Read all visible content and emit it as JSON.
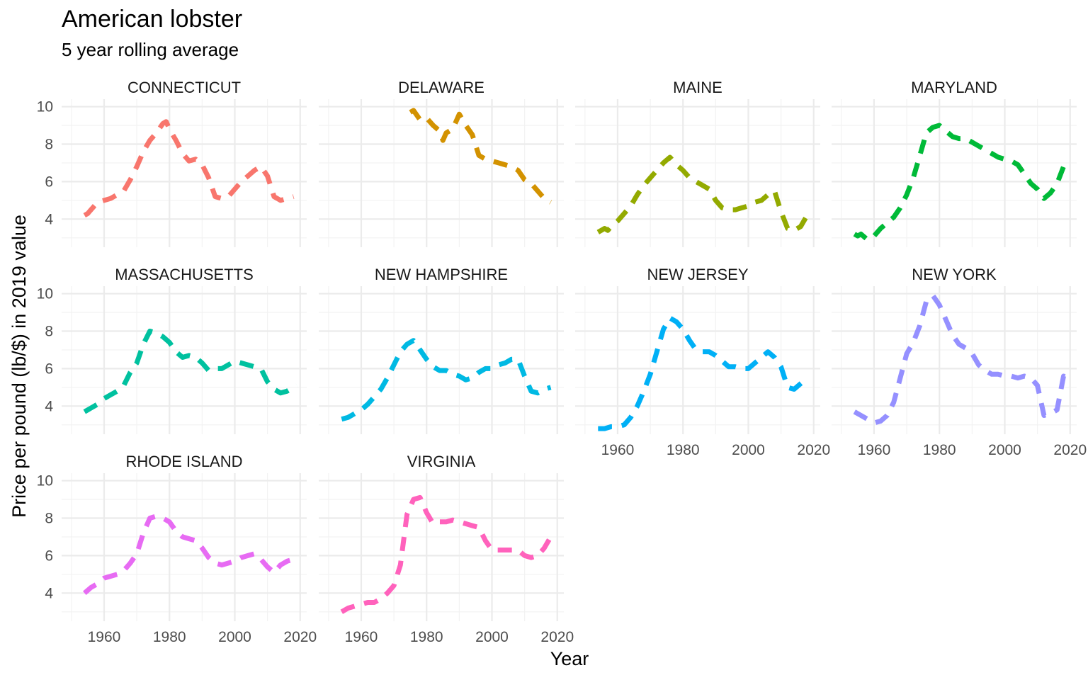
{
  "chart_data": {
    "type": "line",
    "title": "American lobster",
    "subtitle": "5 year rolling average",
    "xlabel": "Year",
    "ylabel": "Price per pound (lb/$) in 2019 value",
    "xlim": [
      1947,
      2022
    ],
    "ylim": [
      2.5,
      10.4
    ],
    "x_ticks": [
      1960,
      1980,
      2000,
      2020
    ],
    "y_ticks": [
      4,
      6,
      8,
      10
    ],
    "grid": true,
    "legend": "none",
    "line_style": "dashed",
    "panels": [
      {
        "name": "CONNECTICUT",
        "color": "#F8766D",
        "x": [
          1954,
          1955,
          1956,
          1957,
          1958,
          1960,
          1962,
          1964,
          1966,
          1968,
          1970,
          1972,
          1974,
          1976,
          1978,
          1979,
          1980,
          1981,
          1982,
          1984,
          1986,
          1988,
          1990,
          1992,
          1994,
          1996,
          1998,
          2000,
          2002,
          2004,
          2006,
          2008,
          2010,
          2012,
          2014,
          2016,
          2018
        ],
        "y": [
          4.2,
          4.3,
          4.5,
          4.7,
          4.9,
          5.0,
          5.1,
          5.3,
          5.5,
          6.1,
          6.8,
          7.6,
          8.2,
          8.6,
          9.1,
          9.2,
          8.8,
          8.5,
          8.2,
          7.5,
          7.1,
          7.2,
          6.9,
          6.2,
          5.2,
          5.1,
          5.2,
          5.6,
          6.0,
          6.3,
          6.6,
          6.8,
          6.3,
          5.2,
          5.0,
          5.1,
          5.2
        ]
      },
      {
        "name": "DELAWARE",
        "color": "#D39200",
        "x": [
          1975,
          1976,
          1978,
          1980,
          1982,
          1984,
          1985,
          1986,
          1988,
          1990,
          1992,
          1994,
          1996,
          1998,
          2000,
          2002,
          2004,
          2006,
          2008,
          2010,
          2012,
          2014,
          2016,
          2018
        ],
        "y": [
          9.7,
          9.8,
          9.3,
          9.4,
          9.0,
          8.7,
          8.2,
          8.6,
          8.8,
          9.6,
          9.0,
          8.5,
          7.4,
          7.2,
          7.1,
          7.0,
          6.9,
          6.8,
          6.6,
          6.1,
          5.9,
          5.5,
          5.1,
          4.9
        ]
      },
      {
        "name": "MAINE",
        "color": "#93AA00",
        "x": [
          1954,
          1955,
          1956,
          1957,
          1958,
          1960,
          1962,
          1964,
          1966,
          1968,
          1970,
          1972,
          1974,
          1976,
          1978,
          1980,
          1982,
          1984,
          1986,
          1988,
          1990,
          1992,
          1994,
          1996,
          1998,
          2000,
          2002,
          2004,
          2006,
          2008,
          2010,
          2012,
          2014,
          2016,
          2018,
          2019
        ],
        "y": [
          3.3,
          3.4,
          3.5,
          3.4,
          3.6,
          3.9,
          4.3,
          4.7,
          5.3,
          5.8,
          6.2,
          6.6,
          7.0,
          7.3,
          6.9,
          6.6,
          6.2,
          6.0,
          5.8,
          5.6,
          5.0,
          4.6,
          4.5,
          4.5,
          4.6,
          4.7,
          4.9,
          5.0,
          5.3,
          5.5,
          4.4,
          3.5,
          3.4,
          3.6,
          4.2,
          4.3
        ]
      },
      {
        "name": "MARYLAND",
        "color": "#00BA38",
        "x": [
          1954,
          1955,
          1956,
          1958,
          1959,
          1960,
          1962,
          1964,
          1966,
          1968,
          1970,
          1972,
          1974,
          1976,
          1978,
          1980,
          1982,
          1984,
          1986,
          1988,
          1990,
          1992,
          1994,
          1996,
          1998,
          2000,
          2002,
          2004,
          2006,
          2008,
          2010,
          2012,
          2014,
          2016,
          2018,
          2019
        ],
        "y": [
          3.2,
          3.1,
          3.2,
          2.9,
          3.0,
          3.1,
          3.5,
          3.8,
          4.1,
          4.6,
          5.3,
          6.2,
          7.4,
          8.6,
          8.9,
          9.0,
          8.7,
          8.4,
          8.3,
          8.3,
          8.1,
          7.9,
          7.7,
          7.5,
          7.3,
          7.2,
          7.1,
          6.9,
          6.4,
          5.9,
          5.6,
          5.1,
          5.4,
          5.9,
          6.8,
          7.0
        ]
      },
      {
        "name": "MASSACHUSETTS",
        "color": "#00C19F",
        "x": [
          1954,
          1956,
          1958,
          1960,
          1962,
          1964,
          1966,
          1968,
          1970,
          1972,
          1974,
          1976,
          1978,
          1980,
          1982,
          1984,
          1986,
          1988,
          1990,
          1992,
          1994,
          1996,
          1998,
          2000,
          2002,
          2004,
          2006,
          2008,
          2010,
          2012,
          2014,
          2016,
          2018,
          2019
        ],
        "y": [
          3.7,
          3.9,
          4.1,
          4.4,
          4.6,
          4.8,
          5.1,
          5.8,
          6.3,
          7.3,
          8.0,
          7.9,
          7.7,
          7.4,
          6.9,
          6.6,
          6.7,
          6.6,
          6.3,
          5.9,
          6.0,
          6.0,
          6.2,
          6.4,
          6.3,
          6.2,
          6.1,
          6.0,
          5.3,
          4.9,
          4.7,
          4.8,
          5.0,
          5.1
        ]
      },
      {
        "name": "NEW HAMPSHIRE",
        "color": "#00B9E3",
        "x": [
          1954,
          1956,
          1958,
          1960,
          1962,
          1964,
          1966,
          1968,
          1970,
          1972,
          1974,
          1976,
          1978,
          1980,
          1982,
          1984,
          1986,
          1988,
          1990,
          1992,
          1994,
          1996,
          1998,
          2000,
          2002,
          2004,
          2006,
          2008,
          2010,
          2012,
          2014,
          2016,
          2018
        ],
        "y": [
          3.3,
          3.4,
          3.6,
          3.8,
          4.1,
          4.5,
          4.9,
          5.5,
          6.2,
          6.9,
          7.3,
          7.5,
          7.0,
          6.5,
          6.1,
          5.9,
          5.9,
          5.7,
          5.6,
          5.4,
          5.5,
          5.8,
          6.0,
          6.0,
          6.2,
          6.3,
          6.5,
          6.5,
          5.6,
          4.8,
          4.7,
          4.9,
          5.0
        ]
      },
      {
        "name": "NEW JERSEY",
        "color": "#00B0F6",
        "x": [
          1954,
          1956,
          1958,
          1960,
          1962,
          1964,
          1966,
          1968,
          1970,
          1972,
          1974,
          1976,
          1978,
          1980,
          1982,
          1984,
          1986,
          1988,
          1990,
          1992,
          1994,
          1996,
          1998,
          2000,
          2002,
          2004,
          2006,
          2008,
          2010,
          2012,
          2014,
          2016,
          2018
        ],
        "y": [
          2.8,
          2.8,
          2.9,
          2.9,
          3.0,
          3.4,
          4.0,
          4.8,
          5.7,
          6.9,
          8.1,
          8.7,
          8.5,
          8.1,
          7.5,
          7.0,
          6.9,
          6.9,
          6.7,
          6.4,
          6.1,
          6.1,
          6.0,
          6.0,
          6.3,
          6.6,
          6.9,
          6.6,
          6.1,
          5.0,
          4.9,
          5.2,
          5.5
        ]
      },
      {
        "name": "NEW YORK",
        "color": "#9590FF",
        "x": [
          1954,
          1956,
          1958,
          1960,
          1962,
          1964,
          1966,
          1968,
          1970,
          1972,
          1974,
          1976,
          1978,
          1980,
          1982,
          1984,
          1986,
          1988,
          1990,
          1992,
          1994,
          1996,
          1998,
          2000,
          2002,
          2004,
          2006,
          2008,
          2010,
          2012,
          2014,
          2016,
          2018,
          2019
        ],
        "y": [
          3.7,
          3.5,
          3.3,
          3.1,
          3.2,
          3.5,
          4.2,
          5.5,
          6.8,
          7.4,
          8.3,
          9.6,
          9.9,
          9.4,
          8.6,
          7.8,
          7.3,
          7.1,
          6.8,
          6.2,
          5.9,
          5.7,
          5.7,
          5.6,
          5.6,
          5.5,
          5.6,
          5.5,
          5.1,
          3.5,
          3.6,
          3.8,
          5.6,
          5.5
        ]
      },
      {
        "name": "RHODE ISLAND",
        "color": "#E76BF3",
        "x": [
          1954,
          1956,
          1958,
          1960,
          1962,
          1964,
          1966,
          1968,
          1970,
          1972,
          1974,
          1976,
          1978,
          1980,
          1982,
          1984,
          1986,
          1988,
          1990,
          1992,
          1994,
          1996,
          1998,
          2000,
          2002,
          2004,
          2006,
          2008,
          2010,
          2012,
          2014,
          2016,
          2018,
          2019
        ],
        "y": [
          4.0,
          4.3,
          4.5,
          4.8,
          4.9,
          5.0,
          5.2,
          5.6,
          6.1,
          7.2,
          8.0,
          8.1,
          8.0,
          7.8,
          7.3,
          7.0,
          6.9,
          6.8,
          6.4,
          5.9,
          5.6,
          5.5,
          5.6,
          5.7,
          5.9,
          6.0,
          6.1,
          5.8,
          5.4,
          5.1,
          5.5,
          5.7,
          5.8,
          5.6
        ]
      },
      {
        "name": "VIRGINIA",
        "color": "#FF62BC",
        "x": [
          1954,
          1956,
          1958,
          1960,
          1962,
          1964,
          1966,
          1968,
          1970,
          1972,
          1974,
          1976,
          1978,
          1980,
          1982,
          1984,
          1986,
          1988,
          1990,
          1992,
          1994,
          1996,
          1998,
          2000,
          2002,
          2004,
          2006,
          2008,
          2010,
          2012,
          2014,
          2016,
          2018,
          2019
        ],
        "y": [
          3.0,
          3.2,
          3.3,
          3.4,
          3.5,
          3.5,
          3.7,
          4.0,
          4.4,
          5.5,
          8.2,
          9.0,
          9.1,
          8.3,
          7.7,
          7.8,
          7.8,
          7.9,
          7.8,
          7.7,
          7.6,
          7.5,
          6.8,
          6.3,
          6.3,
          6.3,
          6.3,
          6.3,
          6.0,
          5.9,
          6.0,
          6.4,
          7.0,
          7.0
        ]
      }
    ]
  }
}
